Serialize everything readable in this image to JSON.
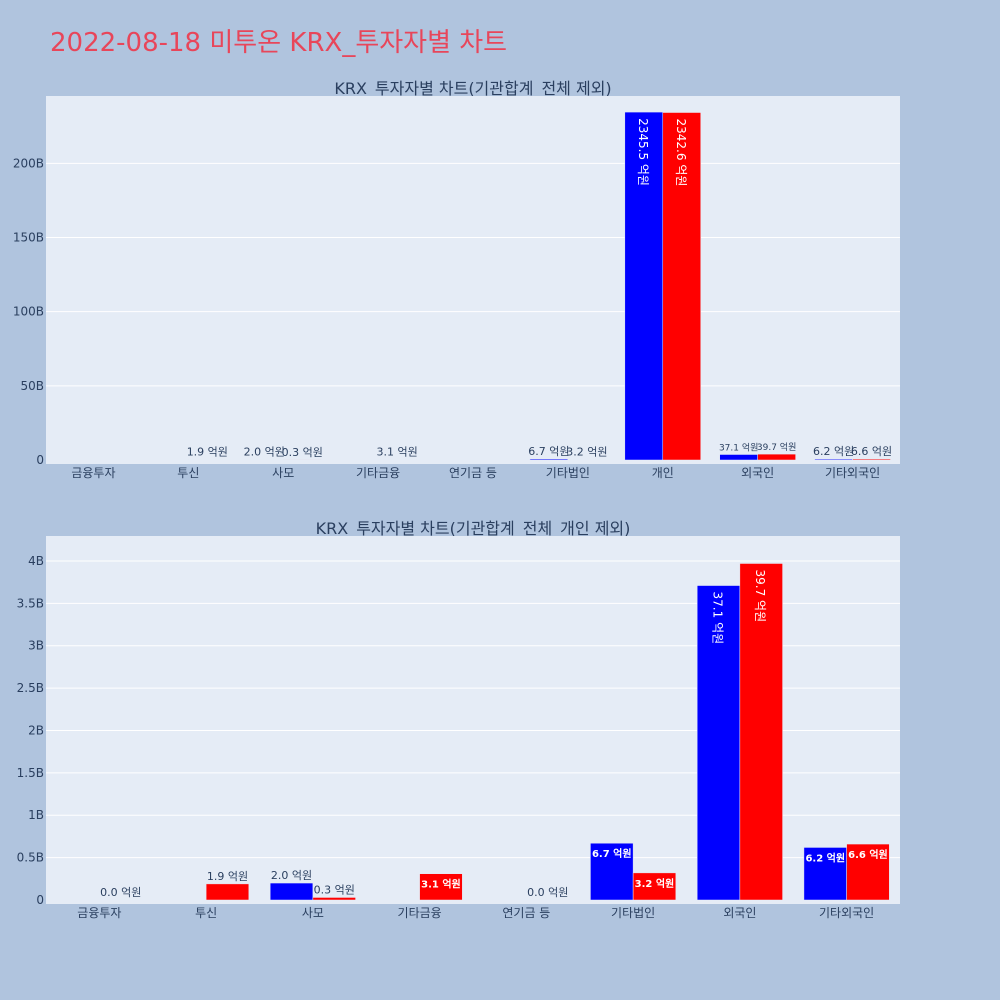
{
  "page_title": "2022-08-18 미투온 KRX_투자자별 차트",
  "colors": {
    "page_bg": "#b0c4de",
    "plot_bg": "#e5ecf6",
    "grid": "#ffffff",
    "title": "#e8465a",
    "text": "#2a3f5f",
    "series_a": "#0000ff",
    "series_b": "#ff0000"
  },
  "chart_data": [
    {
      "type": "bar",
      "title": "KRX_투자자별 차트(기관합계_전체 제외)",
      "categories": [
        "금융투자",
        "투신",
        "사모",
        "기타금융",
        "연기금 등",
        "기타법인",
        "개인",
        "외국인",
        "기타외국인"
      ],
      "ylim": [
        0,
        240
      ],
      "y_unit": "B",
      "yticks": [
        "0",
        "50B",
        "100B",
        "150B",
        "200B"
      ],
      "ytick_values": [
        0,
        50,
        100,
        150,
        200
      ],
      "grid": true,
      "series": [
        {
          "values": [
            0.0,
            0.0,
            0.2,
            0.0,
            0.0,
            0.67,
            234.55,
            3.71,
            0.62
          ],
          "labels": [
            "",
            "",
            "2.0 억원",
            "",
            "",
            "6.7 억원",
            "2345.5 억원",
            "37.1 억원",
            "6.2 억원"
          ]
        },
        {
          "values": [
            0.0,
            0.19,
            0.03,
            0.31,
            0.0,
            0.32,
            234.26,
            3.97,
            0.66
          ],
          "labels": [
            "",
            "1.9 억원",
            "0.3 억원",
            "3.1 억원",
            "",
            "3.2 억원",
            "2342.6 억원",
            "39.7 억원",
            "6.6 억원"
          ]
        }
      ]
    },
    {
      "type": "bar",
      "title": "KRX_투자자별 차트(기관합계_전체_개인 제외)",
      "categories": [
        "금융투자",
        "투신",
        "사모",
        "기타금융",
        "연기금 등",
        "기타법인",
        "외국인",
        "기타외국인"
      ],
      "ylim": [
        0,
        4.2
      ],
      "y_unit": "B",
      "yticks": [
        "0",
        "0.5B",
        "1B",
        "1.5B",
        "2B",
        "2.5B",
        "3B",
        "3.5B",
        "4B"
      ],
      "ytick_values": [
        0,
        0.5,
        1,
        1.5,
        2,
        2.5,
        3,
        3.5,
        4
      ],
      "grid": true,
      "series": [
        {
          "values": [
            0.0,
            0.0,
            0.2,
            0.0,
            0.0,
            0.67,
            3.71,
            0.62
          ],
          "labels": [
            "",
            "",
            "2.0 억원",
            "",
            "",
            "6.7 억원",
            "37.1 억원",
            "6.2 억원"
          ]
        },
        {
          "values": [
            0.0,
            0.19,
            0.03,
            0.31,
            0.0,
            0.32,
            3.97,
            0.66
          ],
          "labels": [
            "0.0 억원",
            "1.9 억원",
            "0.3 억원",
            "3.1 억원",
            "0.0 억원",
            "3.2 억원",
            "39.7 억원",
            "6.6 억원"
          ]
        }
      ]
    }
  ]
}
